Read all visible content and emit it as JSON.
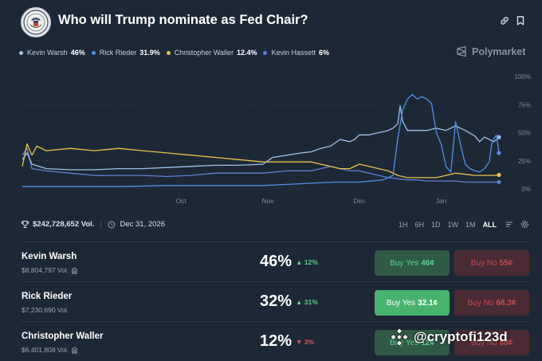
{
  "header": {
    "title": "Who will Trump nominate as Fed Chair?"
  },
  "legend": [
    {
      "name": "Kevin Warsh",
      "pct": "46%",
      "color": "#9fc0e8"
    },
    {
      "name": "Rick Rieder",
      "pct": "31.9%",
      "color": "#4f8fe6"
    },
    {
      "name": "Christopher Waller",
      "pct": "12.4%",
      "color": "#e8c24a"
    },
    {
      "name": "Kevin Hassett",
      "pct": "6%",
      "color": "#5e7fd6"
    }
  ],
  "brand": {
    "name": "Polymarket"
  },
  "chart_data": {
    "type": "line",
    "x_ticks": [
      "Oct",
      "Nov",
      "Dec",
      "Jan"
    ],
    "y_ticks": [
      "100%",
      "75%",
      "50%",
      "25%",
      "0%"
    ],
    "ylim": [
      0,
      100
    ],
    "grid": true,
    "series": [
      {
        "name": "Kevin Warsh",
        "color": "#9fc0e8",
        "values": [
          [
            0,
            26
          ],
          [
            0.01,
            32
          ],
          [
            0.02,
            22
          ],
          [
            0.05,
            18
          ],
          [
            0.1,
            17
          ],
          [
            0.15,
            17
          ],
          [
            0.2,
            18
          ],
          [
            0.25,
            18
          ],
          [
            0.3,
            19
          ],
          [
            0.35,
            20
          ],
          [
            0.4,
            21
          ],
          [
            0.45,
            21
          ],
          [
            0.5,
            22
          ],
          [
            0.52,
            28
          ],
          [
            0.55,
            30
          ],
          [
            0.58,
            32
          ],
          [
            0.6,
            33
          ],
          [
            0.62,
            36
          ],
          [
            0.64,
            38
          ],
          [
            0.66,
            44
          ],
          [
            0.68,
            42
          ],
          [
            0.69,
            44
          ],
          [
            0.7,
            48
          ],
          [
            0.72,
            48
          ],
          [
            0.74,
            50
          ],
          [
            0.76,
            52
          ],
          [
            0.77,
            54
          ],
          [
            0.78,
            58
          ],
          [
            0.785,
            74
          ],
          [
            0.79,
            60
          ],
          [
            0.8,
            52
          ],
          [
            0.82,
            52
          ],
          [
            0.84,
            52
          ],
          [
            0.86,
            54
          ],
          [
            0.88,
            52
          ],
          [
            0.9,
            56
          ],
          [
            0.92,
            52
          ],
          [
            0.94,
            47
          ],
          [
            0.95,
            42
          ],
          [
            0.96,
            46
          ],
          [
            0.97,
            44
          ],
          [
            0.98,
            42
          ],
          [
            0.99,
            46
          ]
        ]
      },
      {
        "name": "Rick Rieder",
        "color": "#4f8fe6",
        "values": [
          [
            0,
            2
          ],
          [
            0.1,
            2
          ],
          [
            0.2,
            2
          ],
          [
            0.3,
            3
          ],
          [
            0.4,
            3
          ],
          [
            0.45,
            3
          ],
          [
            0.5,
            3
          ],
          [
            0.55,
            4
          ],
          [
            0.6,
            5
          ],
          [
            0.65,
            6
          ],
          [
            0.7,
            6
          ],
          [
            0.75,
            8
          ],
          [
            0.77,
            12
          ],
          [
            0.78,
            45
          ],
          [
            0.79,
            70
          ],
          [
            0.8,
            80
          ],
          [
            0.81,
            84
          ],
          [
            0.82,
            80
          ],
          [
            0.83,
            82
          ],
          [
            0.84,
            80
          ],
          [
            0.85,
            76
          ],
          [
            0.86,
            50
          ],
          [
            0.87,
            40
          ],
          [
            0.88,
            20
          ],
          [
            0.89,
            15
          ],
          [
            0.9,
            60
          ],
          [
            0.91,
            40
          ],
          [
            0.92,
            22
          ],
          [
            0.93,
            18
          ],
          [
            0.94,
            16
          ],
          [
            0.95,
            15
          ],
          [
            0.96,
            18
          ],
          [
            0.97,
            24
          ],
          [
            0.975,
            40
          ],
          [
            0.98,
            45
          ],
          [
            0.985,
            48
          ],
          [
            0.99,
            31.9
          ]
        ]
      },
      {
        "name": "Christopher Waller",
        "color": "#e8c24a",
        "values": [
          [
            0,
            20
          ],
          [
            0.01,
            40
          ],
          [
            0.02,
            30
          ],
          [
            0.03,
            38
          ],
          [
            0.05,
            34
          ],
          [
            0.1,
            36
          ],
          [
            0.15,
            34
          ],
          [
            0.2,
            36
          ],
          [
            0.25,
            34
          ],
          [
            0.3,
            32
          ],
          [
            0.35,
            30
          ],
          [
            0.4,
            28
          ],
          [
            0.45,
            26
          ],
          [
            0.5,
            24
          ],
          [
            0.55,
            24
          ],
          [
            0.6,
            24
          ],
          [
            0.62,
            22
          ],
          [
            0.64,
            20
          ],
          [
            0.66,
            18
          ],
          [
            0.68,
            18
          ],
          [
            0.7,
            22
          ],
          [
            0.72,
            20
          ],
          [
            0.74,
            18
          ],
          [
            0.76,
            16
          ],
          [
            0.78,
            12
          ],
          [
            0.8,
            10
          ],
          [
            0.82,
            10
          ],
          [
            0.84,
            10
          ],
          [
            0.86,
            10
          ],
          [
            0.88,
            12
          ],
          [
            0.9,
            14
          ],
          [
            0.92,
            13
          ],
          [
            0.94,
            12
          ],
          [
            0.96,
            12
          ],
          [
            0.98,
            12
          ],
          [
            0.99,
            12.4
          ]
        ]
      },
      {
        "name": "Kevin Hassett",
        "color": "#5e7fd6",
        "values": [
          [
            0,
            30
          ],
          [
            0.01,
            36
          ],
          [
            0.02,
            18
          ],
          [
            0.05,
            16
          ],
          [
            0.1,
            14
          ],
          [
            0.15,
            12
          ],
          [
            0.2,
            12
          ],
          [
            0.25,
            12
          ],
          [
            0.3,
            11
          ],
          [
            0.35,
            12
          ],
          [
            0.4,
            14
          ],
          [
            0.45,
            14
          ],
          [
            0.5,
            14
          ],
          [
            0.55,
            16
          ],
          [
            0.6,
            16
          ],
          [
            0.62,
            18
          ],
          [
            0.64,
            20
          ],
          [
            0.66,
            18
          ],
          [
            0.68,
            16
          ],
          [
            0.7,
            16
          ],
          [
            0.72,
            14
          ],
          [
            0.74,
            12
          ],
          [
            0.76,
            10
          ],
          [
            0.78,
            9
          ],
          [
            0.8,
            8
          ],
          [
            0.82,
            8
          ],
          [
            0.84,
            7
          ],
          [
            0.86,
            7
          ],
          [
            0.88,
            7
          ],
          [
            0.9,
            7
          ],
          [
            0.92,
            6
          ],
          [
            0.94,
            6
          ],
          [
            0.96,
            6
          ],
          [
            0.98,
            6
          ],
          [
            0.99,
            6
          ]
        ]
      }
    ]
  },
  "stats": {
    "volume": "$242,728,652 Vol.",
    "end_date": "Dec 31, 2026"
  },
  "ranges": [
    "1H",
    "6H",
    "1D",
    "1W",
    "1M",
    "ALL"
  ],
  "active_range": "ALL",
  "outcomes": [
    {
      "name": "Kevin Warsh",
      "volume": "$8,804,797 Vol.",
      "prob": "46%",
      "change": "12%",
      "direction": "up",
      "yes_label": "Buy Yes",
      "yes_price": "46¢",
      "no_label": "Buy No",
      "no_price": "55¢"
    },
    {
      "name": "Rick Rieder",
      "volume": "$7,230,690 Vol.",
      "prob": "32%",
      "change": "31%",
      "direction": "up",
      "yes_label": "Buy Yes",
      "yes_price": "32.1¢",
      "no_label": "Buy No",
      "no_price": "68.3¢"
    },
    {
      "name": "Christopher Waller",
      "volume": "$6,401,808 Vol.",
      "prob": "12%",
      "change": "3%",
      "direction": "down",
      "yes_label": "Buy Yes",
      "yes_price": "12¢",
      "no_label": "Buy No",
      "no_price": "88¢"
    }
  ],
  "watermark": {
    "text": "@cryptofi123d"
  },
  "colors": {
    "up": "#5fd08a",
    "down": "#e0555b",
    "grid": "#2f3b4a",
    "axis_text": "#7f8a97"
  }
}
